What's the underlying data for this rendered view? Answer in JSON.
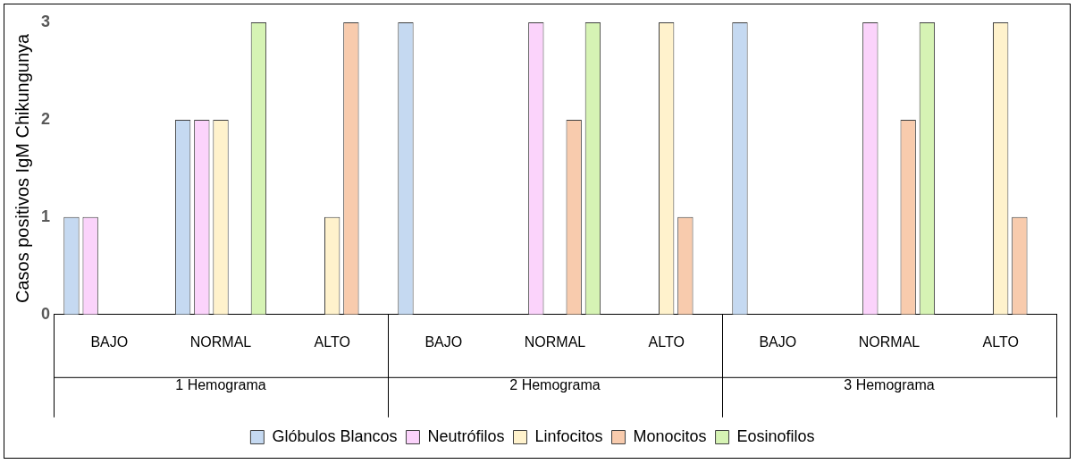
{
  "chart_data": {
    "type": "bar",
    "ylabel": "Casos positivos IgM Chikungunya",
    "categories": [
      "BAJO",
      "NORMAL",
      "ALTO",
      "BAJO",
      "NORMAL",
      "ALTO",
      "BAJO",
      "NORMAL",
      "ALTO"
    ],
    "annotations": [
      "1 Hemograma",
      "2 Hemograma",
      "3 Hemograma"
    ],
    "series": [
      {
        "name": "Glóbulos Blancos",
        "color": "#c5d9f1",
        "values": [
          1,
          2,
          0,
          3,
          0,
          0,
          3,
          0,
          0
        ]
      },
      {
        "name": "Neutrófilos",
        "color": "#fbd3fb",
        "values": [
          1,
          2,
          0,
          0,
          3,
          0,
          0,
          3,
          0
        ]
      },
      {
        "name": "Linfocitos",
        "color": "#fff2cc",
        "values": [
          0,
          2,
          1,
          0,
          0,
          3,
          0,
          0,
          3
        ]
      },
      {
        "name": "Monocitos",
        "color": "#f8cbad",
        "values": [
          0,
          0,
          3,
          0,
          2,
          1,
          0,
          2,
          1
        ]
      },
      {
        "name": "Eosinofilos",
        "color": "#d6f3b4",
        "values": [
          0,
          3,
          0,
          0,
          3,
          0,
          0,
          3,
          0
        ]
      }
    ],
    "ylim": [
      0,
      3
    ],
    "yticks": [
      0,
      1,
      2,
      3
    ],
    "grid": false,
    "legend": "bottom"
  }
}
